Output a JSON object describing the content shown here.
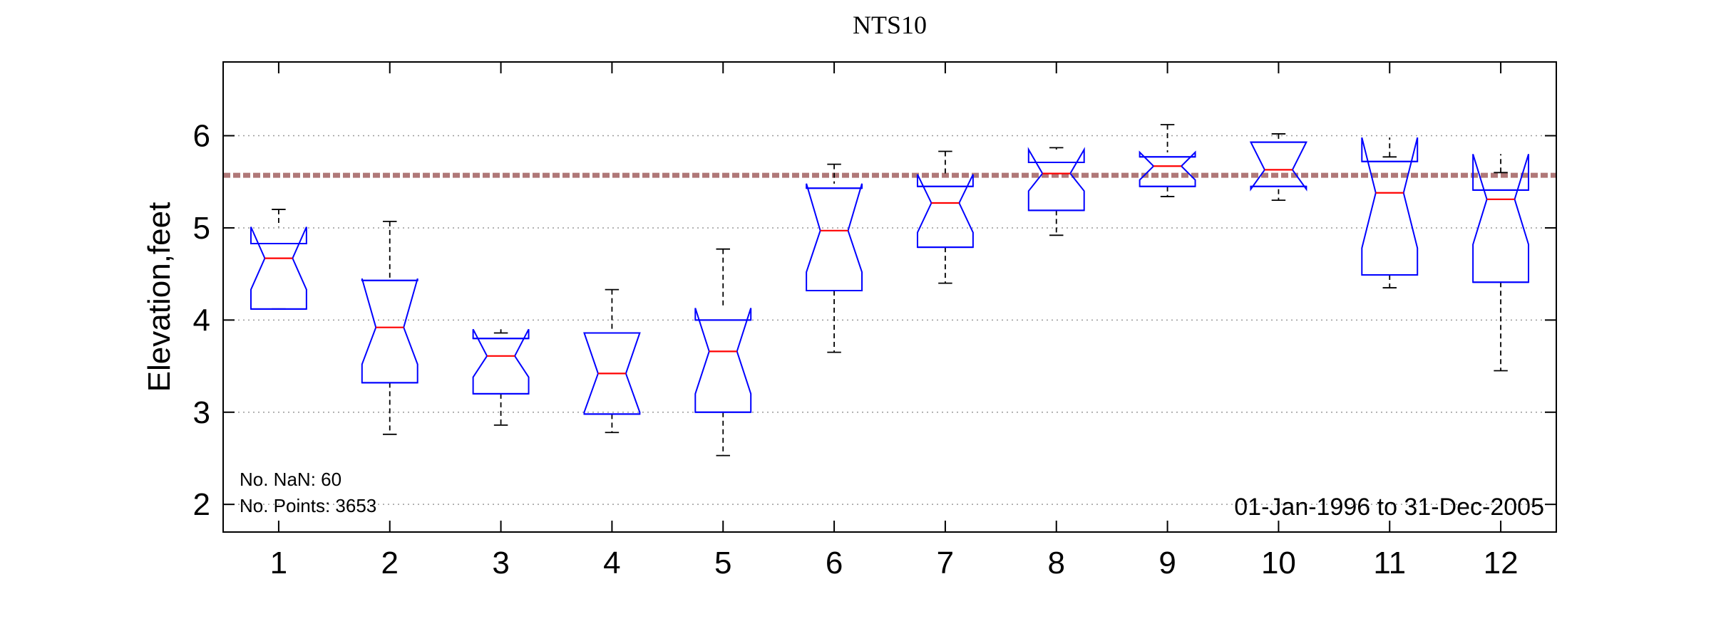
{
  "chart_data": {
    "type": "boxplot",
    "title": "NTS10",
    "xlabel": "",
    "ylabel": "Elevation,feet",
    "ylim": [
      1.7,
      6.8
    ],
    "xlim": [
      0.5,
      12.5
    ],
    "yticks": [
      2,
      3,
      4,
      5,
      6
    ],
    "categories": [
      "1",
      "2",
      "3",
      "4",
      "5",
      "6",
      "7",
      "8",
      "9",
      "10",
      "11",
      "12"
    ],
    "grid": "horizontal dotted",
    "reference_line": {
      "value": 5.57,
      "style": "dashed",
      "color": "#b07878"
    },
    "boxes": [
      {
        "category": "1",
        "whisker_low": 4.12,
        "q1": 4.12,
        "median": 4.67,
        "q3": 4.83,
        "whisker_high": 5.2,
        "notch_low": 4.33,
        "notch_high": 5.01
      },
      {
        "category": "2",
        "whisker_low": 2.76,
        "q1": 3.32,
        "median": 3.92,
        "q3": 4.43,
        "whisker_high": 5.07,
        "notch_low": 3.52,
        "notch_high": 4.45
      },
      {
        "category": "3",
        "whisker_low": 2.86,
        "q1": 3.2,
        "median": 3.61,
        "q3": 3.8,
        "whisker_high": 3.86,
        "notch_low": 3.38,
        "notch_high": 3.9
      },
      {
        "category": "4",
        "whisker_low": 2.78,
        "q1": 2.98,
        "median": 3.42,
        "q3": 3.86,
        "whisker_high": 4.33,
        "notch_low": 3.0,
        "notch_high": 3.86
      },
      {
        "category": "5",
        "whisker_low": 2.53,
        "q1": 3.0,
        "median": 3.66,
        "q3": 4.0,
        "whisker_high": 4.77,
        "notch_low": 3.2,
        "notch_high": 4.13
      },
      {
        "category": "6",
        "whisker_low": 3.65,
        "q1": 4.32,
        "median": 4.97,
        "q3": 5.43,
        "whisker_high": 5.69,
        "notch_low": 4.52,
        "notch_high": 5.48
      },
      {
        "category": "7",
        "whisker_low": 4.4,
        "q1": 4.79,
        "median": 5.27,
        "q3": 5.45,
        "whisker_high": 5.83,
        "notch_low": 4.95,
        "notch_high": 5.58
      },
      {
        "category": "8",
        "whisker_low": 4.92,
        "q1": 5.19,
        "median": 5.59,
        "q3": 5.71,
        "whisker_high": 5.87,
        "notch_low": 5.4,
        "notch_high": 5.85
      },
      {
        "category": "9",
        "whisker_low": 5.34,
        "q1": 5.45,
        "median": 5.67,
        "q3": 5.77,
        "whisker_high": 6.12,
        "notch_low": 5.52,
        "notch_high": 5.82
      },
      {
        "category": "10",
        "whisker_low": 5.3,
        "q1": 5.45,
        "median": 5.63,
        "q3": 5.93,
        "whisker_high": 6.02,
        "notch_low": 5.42,
        "notch_high": 5.93
      },
      {
        "category": "11",
        "whisker_low": 4.35,
        "q1": 4.49,
        "median": 5.38,
        "q3": 5.72,
        "whisker_high": 5.77,
        "notch_low": 4.78,
        "notch_high": 5.98
      },
      {
        "category": "12",
        "whisker_low": 3.45,
        "q1": 4.41,
        "median": 5.31,
        "q3": 5.41,
        "whisker_high": 5.6,
        "notch_low": 4.82,
        "notch_high": 5.8
      }
    ],
    "colors": {
      "box": "#0000ff",
      "median": "#ff0000",
      "whisker": "#000000",
      "grid": "#9a9a9a"
    }
  },
  "annotations": {
    "nan_count": "No. NaN: 60",
    "points_count": "No. Points: 3653",
    "date_range": "01-Jan-1996 to 31-Dec-2005"
  }
}
